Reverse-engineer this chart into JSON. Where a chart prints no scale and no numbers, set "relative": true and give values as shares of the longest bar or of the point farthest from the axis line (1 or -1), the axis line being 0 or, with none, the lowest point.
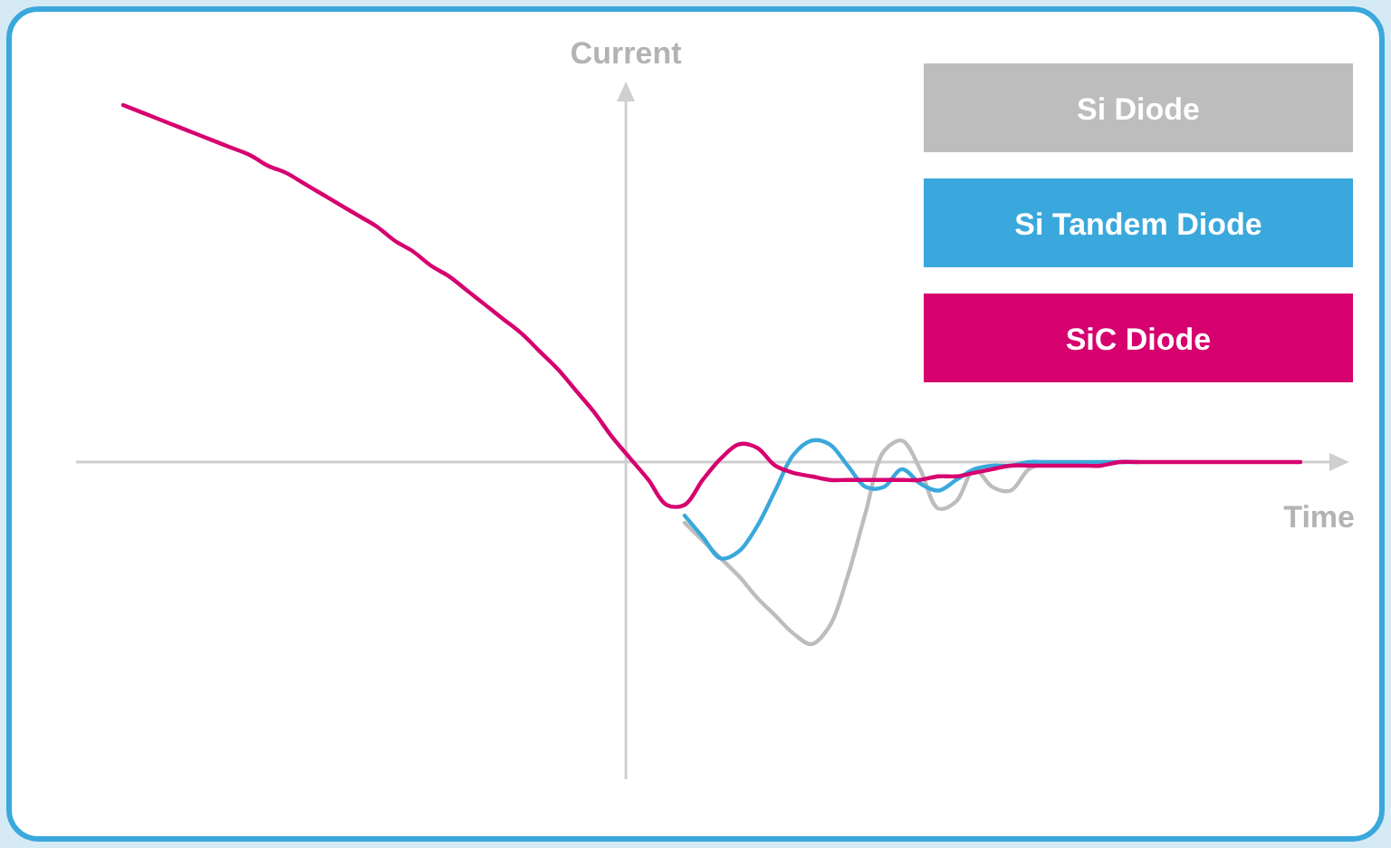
{
  "chart_data": {
    "type": "line",
    "relative": true,
    "xlabel": "Time",
    "ylabel": "Current",
    "legend": "top right",
    "grid": false,
    "marker": "none",
    "line_style": "solid",
    "categories": [
      null,
      null,
      null,
      null,
      null,
      null,
      null,
      null,
      null,
      null,
      null,
      null,
      null,
      null,
      null,
      null,
      null,
      null,
      null,
      null,
      null,
      null,
      null,
      null,
      null,
      null,
      null,
      null,
      null,
      null,
      null,
      null,
      null,
      null,
      null,
      null,
      null,
      null,
      null,
      null,
      null,
      null,
      null,
      null,
      null,
      null,
      null,
      null,
      null,
      null,
      null,
      null,
      null,
      null,
      null,
      null,
      null,
      null,
      null,
      null,
      null,
      null,
      null,
      null,
      null,
      null
    ],
    "series": [
      {
        "name": "Si Diode",
        "color": "#bdbdbd",
        "values": [
          null,
          null,
          null,
          null,
          null,
          null,
          null,
          null,
          null,
          null,
          null,
          null,
          null,
          null,
          null,
          null,
          null,
          null,
          null,
          null,
          null,
          null,
          null,
          null,
          null,
          null,
          null,
          null,
          null,
          null,
          null,
          -0.17,
          -0.22,
          -0.27,
          -0.32,
          -0.38,
          -0.43,
          -0.48,
          -0.51,
          -0.46,
          -0.32,
          -0.14,
          0.03,
          0.06,
          -0.02,
          -0.13,
          -0.11,
          -0.02,
          -0.07,
          -0.08,
          -0.02,
          0,
          null,
          null,
          null,
          null,
          null,
          null,
          null,
          null,
          null,
          null,
          null,
          null,
          null,
          null
        ]
      },
      {
        "name": "Si Tandem Diode",
        "color": "#3aa8dc",
        "values": [
          null,
          null,
          null,
          null,
          null,
          null,
          null,
          null,
          null,
          null,
          null,
          null,
          null,
          null,
          null,
          null,
          null,
          null,
          null,
          null,
          null,
          null,
          null,
          null,
          null,
          null,
          null,
          null,
          null,
          null,
          null,
          -0.15,
          -0.21,
          -0.27,
          -0.25,
          -0.18,
          -0.08,
          0.02,
          0.06,
          0.05,
          -0.01,
          -0.07,
          -0.07,
          -0.02,
          -0.06,
          -0.08,
          -0.05,
          -0.02,
          -0.01,
          -0.01,
          0,
          0,
          0,
          0,
          0,
          0,
          0,
          null,
          null,
          null,
          null,
          null,
          null,
          null,
          null,
          null
        ]
      },
      {
        "name": "SiC Diode",
        "color": "#d6006f",
        "values": [
          1,
          0.98,
          0.96,
          0.94,
          0.92,
          0.9,
          0.88,
          0.86,
          0.83,
          0.81,
          0.78,
          0.75,
          0.72,
          0.69,
          0.66,
          0.62,
          0.59,
          0.55,
          0.52,
          0.48,
          0.44,
          0.4,
          0.36,
          0.31,
          0.26,
          0.2,
          0.14,
          0.07,
          0.01,
          -0.05,
          -0.12,
          -0.12,
          -0.05,
          0.01,
          0.05,
          0.04,
          -0.01,
          -0.03,
          -0.04,
          -0.05,
          -0.05,
          -0.05,
          -0.05,
          -0.05,
          -0.05,
          -0.04,
          -0.04,
          -0.03,
          -0.02,
          -0.01,
          -0.01,
          -0.01,
          -0.01,
          -0.01,
          -0.01,
          0,
          0,
          0,
          0,
          0,
          0,
          0,
          0,
          0,
          0,
          0
        ]
      }
    ]
  }
}
